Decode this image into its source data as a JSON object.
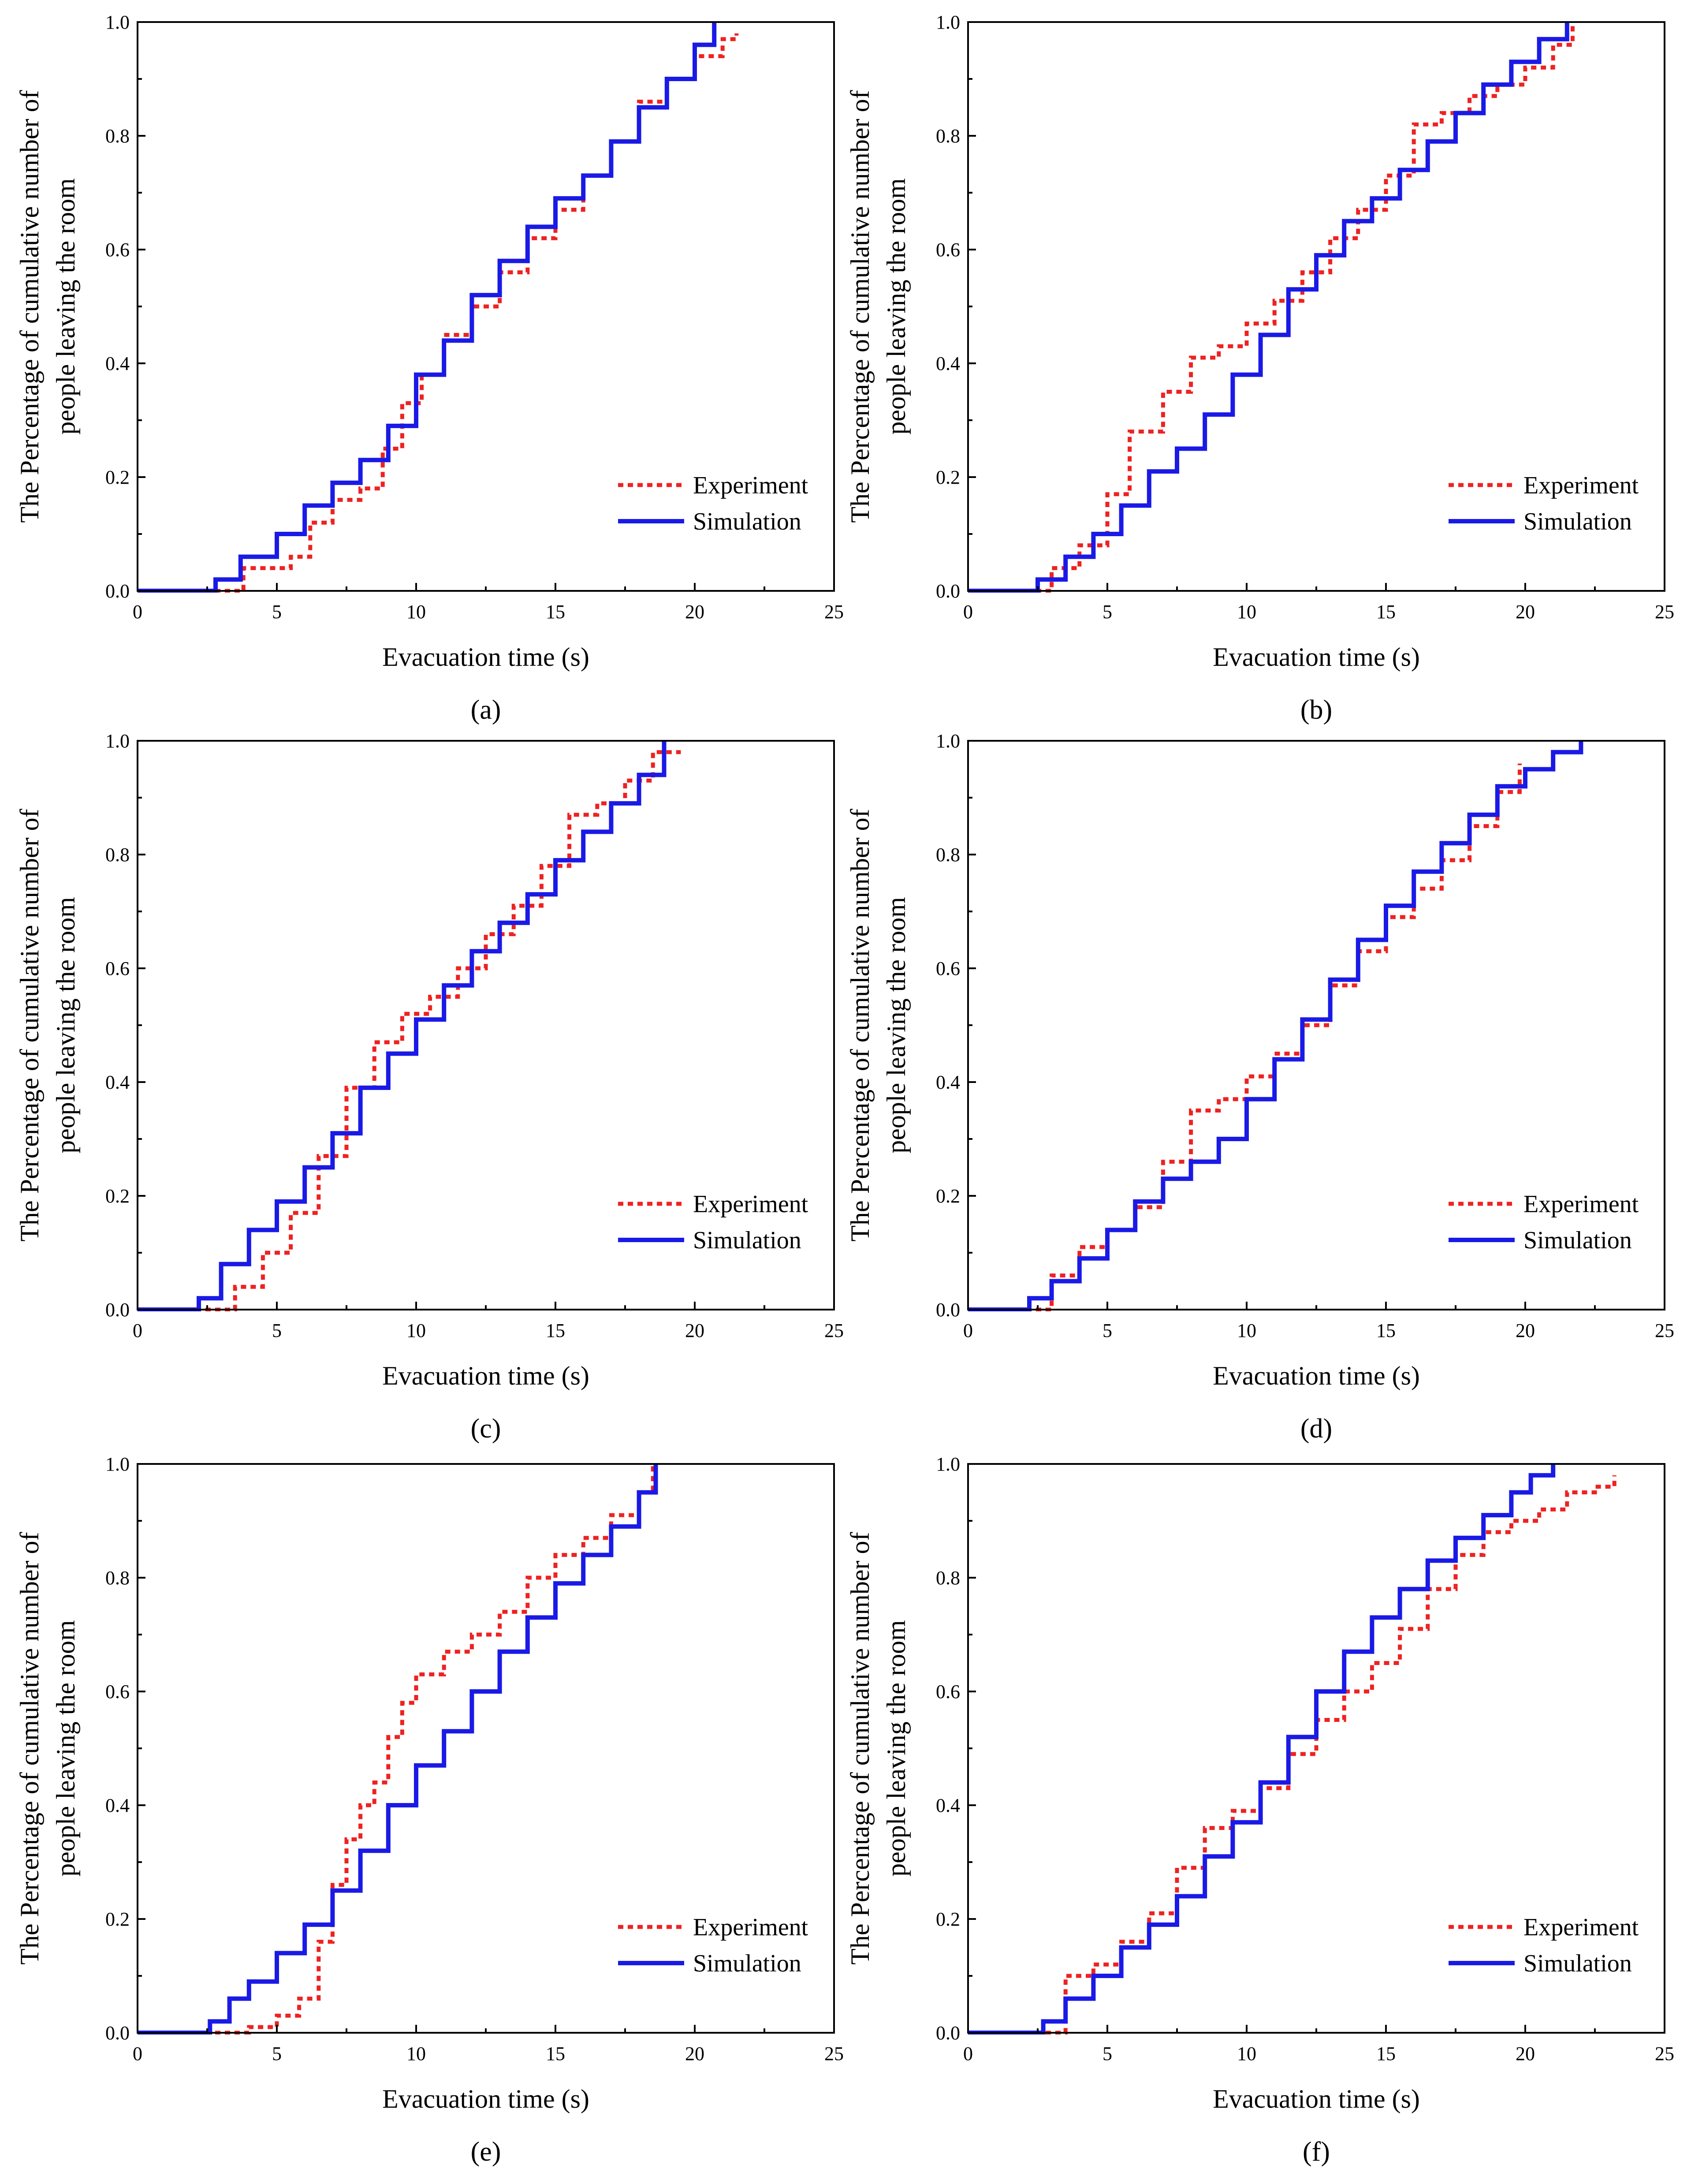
{
  "figure": {
    "panel_labels": [
      "(a)",
      "(b)",
      "(c)",
      "(d)",
      "(e)",
      "(f)"
    ]
  },
  "colors": {
    "experiment": "#ee2222",
    "simulation": "#1a1ae6",
    "axis": "#000000"
  },
  "chart_data": [
    {
      "id": "a",
      "type": "line",
      "step": true,
      "xlabel": "Evacuation time (s)",
      "ylabel": [
        "The Percentage of cumulative number of",
        "people leaving the room"
      ],
      "xlim": [
        0,
        25
      ],
      "ylim": [
        0,
        1.0
      ],
      "xticks": [
        0,
        5,
        10,
        15,
        20,
        25
      ],
      "yticks": [
        0.0,
        0.2,
        0.4,
        0.6,
        0.8,
        1.0
      ],
      "xtick_labels": [
        "0",
        "5",
        "10",
        "15",
        "20",
        "25"
      ],
      "ytick_labels": [
        "0.0",
        "0.2",
        "0.4",
        "0.6",
        "0.8",
        "1.0"
      ],
      "legend": {
        "position": "lower-right",
        "entries": [
          "Experiment",
          "Simulation"
        ]
      },
      "series": [
        {
          "name": "Experiment",
          "style": "dotted",
          "x": [
            0,
            3.5,
            3.8,
            5.5,
            6.2,
            7.0,
            8.0,
            8.8,
            9.5,
            10.2,
            11.0,
            12.0,
            13.0,
            14.0,
            15.0,
            16.0,
            17.0,
            18.0,
            19.0,
            20.0,
            21.0,
            21.5
          ],
          "y": [
            0,
            0,
            0.04,
            0.06,
            0.12,
            0.16,
            0.18,
            0.25,
            0.33,
            0.38,
            0.45,
            0.5,
            0.56,
            0.62,
            0.67,
            0.73,
            0.79,
            0.86,
            0.9,
            0.94,
            0.97,
            0.98
          ]
        },
        {
          "name": "Simulation",
          "style": "solid",
          "x": [
            0,
            2.8,
            3.7,
            5.0,
            6.0,
            7.0,
            8.0,
            9.0,
            10.0,
            11.0,
            12.0,
            13.0,
            14.0,
            15.0,
            16.0,
            17.0,
            18.0,
            19.0,
            20.0,
            20.7
          ],
          "y": [
            0,
            0.02,
            0.06,
            0.1,
            0.15,
            0.19,
            0.23,
            0.29,
            0.38,
            0.44,
            0.52,
            0.58,
            0.64,
            0.69,
            0.73,
            0.79,
            0.85,
            0.9,
            0.96,
            1.0
          ]
        }
      ]
    },
    {
      "id": "b",
      "type": "line",
      "step": true,
      "xlabel": "Evacuation time (s)",
      "ylabel": [
        "The Percentage of cumulative number of",
        "people leaving the room"
      ],
      "xlim": [
        0,
        25
      ],
      "ylim": [
        0,
        1.0
      ],
      "xticks": [
        0,
        5,
        10,
        15,
        20,
        25
      ],
      "yticks": [
        0.0,
        0.2,
        0.4,
        0.6,
        0.8,
        1.0
      ],
      "xtick_labels": [
        "0",
        "5",
        "10",
        "15",
        "20",
        "25"
      ],
      "ytick_labels": [
        "0.0",
        "0.2",
        "0.4",
        "0.6",
        "0.8",
        "1.0"
      ],
      "legend": {
        "position": "lower-right",
        "entries": [
          "Experiment",
          "Simulation"
        ]
      },
      "series": [
        {
          "name": "Experiment",
          "style": "dotted",
          "x": [
            0,
            2.3,
            3.0,
            4.0,
            5.0,
            5.8,
            7.0,
            8.0,
            9.0,
            10.0,
            11.0,
            12.0,
            13.0,
            14.0,
            15.0,
            16.0,
            17.0,
            18.0,
            19.0,
            20.0,
            21.0,
            21.7
          ],
          "y": [
            0,
            0,
            0.04,
            0.08,
            0.17,
            0.28,
            0.35,
            0.41,
            0.43,
            0.47,
            0.51,
            0.56,
            0.62,
            0.67,
            0.73,
            0.82,
            0.84,
            0.87,
            0.89,
            0.92,
            0.96,
            1.0
          ]
        },
        {
          "name": "Simulation",
          "style": "solid",
          "x": [
            0,
            2.5,
            3.5,
            4.5,
            5.5,
            6.5,
            7.5,
            8.5,
            9.5,
            10.5,
            11.5,
            12.5,
            13.5,
            14.5,
            15.5,
            16.5,
            17.5,
            18.5,
            19.5,
            20.5,
            21.5
          ],
          "y": [
            0,
            0.02,
            0.06,
            0.1,
            0.15,
            0.21,
            0.25,
            0.31,
            0.38,
            0.45,
            0.53,
            0.59,
            0.65,
            0.69,
            0.74,
            0.79,
            0.84,
            0.89,
            0.93,
            0.97,
            1.0
          ]
        }
      ]
    },
    {
      "id": "c",
      "type": "line",
      "step": true,
      "xlabel": "Evacuation time (s)",
      "ylabel": [
        "The Percentage of cumulative number of",
        "people leaving the room"
      ],
      "xlim": [
        0,
        25
      ],
      "ylim": [
        0,
        1.0
      ],
      "xticks": [
        0,
        5,
        10,
        15,
        20,
        25
      ],
      "yticks": [
        0.0,
        0.2,
        0.4,
        0.6,
        0.8,
        1.0
      ],
      "xtick_labels": [
        "0",
        "5",
        "10",
        "15",
        "20",
        "25"
      ],
      "ytick_labels": [
        "0.0",
        "0.2",
        "0.4",
        "0.6",
        "0.8",
        "1.0"
      ],
      "legend": {
        "position": "lower-right",
        "entries": [
          "Experiment",
          "Simulation"
        ]
      },
      "series": [
        {
          "name": "Experiment",
          "style": "dotted",
          "x": [
            0,
            2.8,
            3.5,
            4.5,
            5.5,
            6.5,
            7.5,
            8.5,
            9.5,
            10.5,
            11.5,
            12.5,
            13.5,
            14.5,
            15.5,
            16.5,
            17.5,
            18.5,
            19.5
          ],
          "y": [
            0,
            0,
            0.04,
            0.1,
            0.17,
            0.27,
            0.39,
            0.47,
            0.52,
            0.55,
            0.6,
            0.66,
            0.71,
            0.78,
            0.87,
            0.89,
            0.93,
            0.98,
            0.98
          ]
        },
        {
          "name": "Simulation",
          "style": "solid",
          "x": [
            0,
            2.2,
            3.0,
            4.0,
            5.0,
            6.0,
            7.0,
            8.0,
            9.0,
            10.0,
            11.0,
            12.0,
            13.0,
            14.0,
            15.0,
            16.0,
            17.0,
            18.0,
            18.9
          ],
          "y": [
            0,
            0.02,
            0.08,
            0.14,
            0.19,
            0.25,
            0.31,
            0.39,
            0.45,
            0.51,
            0.57,
            0.63,
            0.68,
            0.73,
            0.79,
            0.84,
            0.89,
            0.94,
            1.0
          ]
        }
      ]
    },
    {
      "id": "d",
      "type": "line",
      "step": true,
      "xlabel": "Evacuation time (s)",
      "ylabel": [
        "The Percentage of cumulative number of",
        "people leaving the room"
      ],
      "xlim": [
        0,
        25
      ],
      "ylim": [
        0,
        1.0
      ],
      "xticks": [
        0,
        5,
        10,
        15,
        20,
        25
      ],
      "yticks": [
        0.0,
        0.2,
        0.4,
        0.6,
        0.8,
        1.0
      ],
      "xtick_labels": [
        "0",
        "5",
        "10",
        "15",
        "20",
        "25"
      ],
      "ytick_labels": [
        "0.0",
        "0.2",
        "0.4",
        "0.6",
        "0.8",
        "1.0"
      ],
      "legend": {
        "position": "lower-right",
        "entries": [
          "Experiment",
          "Simulation"
        ]
      },
      "series": [
        {
          "name": "Experiment",
          "style": "dotted",
          "x": [
            0,
            2.0,
            3.0,
            4.0,
            5.0,
            6.0,
            7.0,
            8.0,
            9.0,
            10.0,
            11.0,
            12.0,
            13.0,
            14.0,
            15.0,
            16.0,
            17.0,
            18.0,
            19.0,
            19.8
          ],
          "y": [
            0,
            0,
            0.06,
            0.11,
            0.14,
            0.18,
            0.26,
            0.35,
            0.37,
            0.41,
            0.45,
            0.5,
            0.57,
            0.63,
            0.69,
            0.74,
            0.79,
            0.85,
            0.91,
            0.96
          ]
        },
        {
          "name": "Simulation",
          "style": "solid",
          "x": [
            0,
            2.2,
            3.0,
            4.0,
            5.0,
            6.0,
            7.0,
            8.0,
            9.0,
            10.0,
            11.0,
            12.0,
            13.0,
            14.0,
            15.0,
            16.0,
            17.0,
            18.0,
            19.0,
            20.0,
            21.0,
            22.0
          ],
          "y": [
            0,
            0.02,
            0.05,
            0.09,
            0.14,
            0.19,
            0.23,
            0.26,
            0.3,
            0.37,
            0.44,
            0.51,
            0.58,
            0.65,
            0.71,
            0.77,
            0.82,
            0.87,
            0.92,
            0.95,
            0.98,
            1.0
          ]
        }
      ]
    },
    {
      "id": "e",
      "type": "line",
      "step": true,
      "xlabel": "Evacuation time (s)",
      "ylabel": [
        "The Percentage of cumulative number of",
        "people leaving the room"
      ],
      "xlim": [
        0,
        25
      ],
      "ylim": [
        0,
        1.0
      ],
      "xticks": [
        0,
        5,
        10,
        15,
        20,
        25
      ],
      "yticks": [
        0.0,
        0.2,
        0.4,
        0.6,
        0.8,
        1.0
      ],
      "xtick_labels": [
        "0",
        "5",
        "10",
        "15",
        "20",
        "25"
      ],
      "ytick_labels": [
        "0.0",
        "0.2",
        "0.4",
        "0.6",
        "0.8",
        "1.0"
      ],
      "legend": {
        "position": "lower-right",
        "entries": [
          "Experiment",
          "Simulation"
        ]
      },
      "series": [
        {
          "name": "Experiment",
          "style": "dotted",
          "x": [
            0,
            3.0,
            4.0,
            5.0,
            5.8,
            6.5,
            7.0,
            7.5,
            8.0,
            8.5,
            9.0,
            9.5,
            10.0,
            11.0,
            12.0,
            13.0,
            14.0,
            15.0,
            16.0,
            17.0,
            18.0,
            18.5
          ],
          "y": [
            0,
            0,
            0.01,
            0.03,
            0.06,
            0.16,
            0.26,
            0.34,
            0.4,
            0.44,
            0.52,
            0.58,
            0.63,
            0.67,
            0.7,
            0.74,
            0.8,
            0.84,
            0.87,
            0.91,
            0.95,
            1.0
          ]
        },
        {
          "name": "Simulation",
          "style": "solid",
          "x": [
            0,
            2.6,
            3.3,
            4.0,
            5.0,
            6.0,
            7.0,
            8.0,
            9.0,
            10.0,
            11.0,
            12.0,
            13.0,
            14.0,
            15.0,
            16.0,
            17.0,
            18.0,
            18.6
          ],
          "y": [
            0,
            0.02,
            0.06,
            0.09,
            0.14,
            0.19,
            0.25,
            0.32,
            0.4,
            0.47,
            0.53,
            0.6,
            0.67,
            0.73,
            0.79,
            0.84,
            0.89,
            0.95,
            1.0
          ]
        }
      ]
    },
    {
      "id": "f",
      "type": "line",
      "step": true,
      "xlabel": "Evacuation time (s)",
      "ylabel": [
        "The Percentage of cumulative number of",
        "people leaving the room"
      ],
      "xlim": [
        0,
        25
      ],
      "ylim": [
        0,
        1.0
      ],
      "xticks": [
        0,
        5,
        10,
        15,
        20,
        25
      ],
      "yticks": [
        0.0,
        0.2,
        0.4,
        0.6,
        0.8,
        1.0
      ],
      "xtick_labels": [
        "0",
        "5",
        "10",
        "15",
        "20",
        "25"
      ],
      "ytick_labels": [
        "0.0",
        "0.2",
        "0.4",
        "0.6",
        "0.8",
        "1.0"
      ],
      "legend": {
        "position": "lower-right",
        "entries": [
          "Experiment",
          "Simulation"
        ]
      },
      "series": [
        {
          "name": "Experiment",
          "style": "dotted",
          "x": [
            0,
            2.8,
            3.5,
            4.5,
            5.5,
            6.5,
            7.5,
            8.5,
            9.5,
            10.5,
            11.5,
            12.5,
            13.5,
            14.5,
            15.5,
            16.5,
            17.5,
            18.5,
            19.5,
            20.5,
            21.5,
            22.5,
            23.2
          ],
          "y": [
            0,
            0,
            0.1,
            0.12,
            0.16,
            0.21,
            0.29,
            0.36,
            0.39,
            0.43,
            0.49,
            0.55,
            0.6,
            0.65,
            0.71,
            0.78,
            0.84,
            0.88,
            0.9,
            0.92,
            0.95,
            0.96,
            0.98
          ]
        },
        {
          "name": "Simulation",
          "style": "solid",
          "x": [
            0,
            2.7,
            3.5,
            4.5,
            5.5,
            6.5,
            7.5,
            8.5,
            9.5,
            10.5,
            11.5,
            12.5,
            13.5,
            14.5,
            15.5,
            16.5,
            17.5,
            18.5,
            19.5,
            20.2,
            21.0
          ],
          "y": [
            0,
            0.02,
            0.06,
            0.1,
            0.15,
            0.19,
            0.24,
            0.31,
            0.37,
            0.44,
            0.52,
            0.6,
            0.67,
            0.73,
            0.78,
            0.83,
            0.87,
            0.91,
            0.95,
            0.98,
            1.0
          ]
        }
      ]
    }
  ]
}
